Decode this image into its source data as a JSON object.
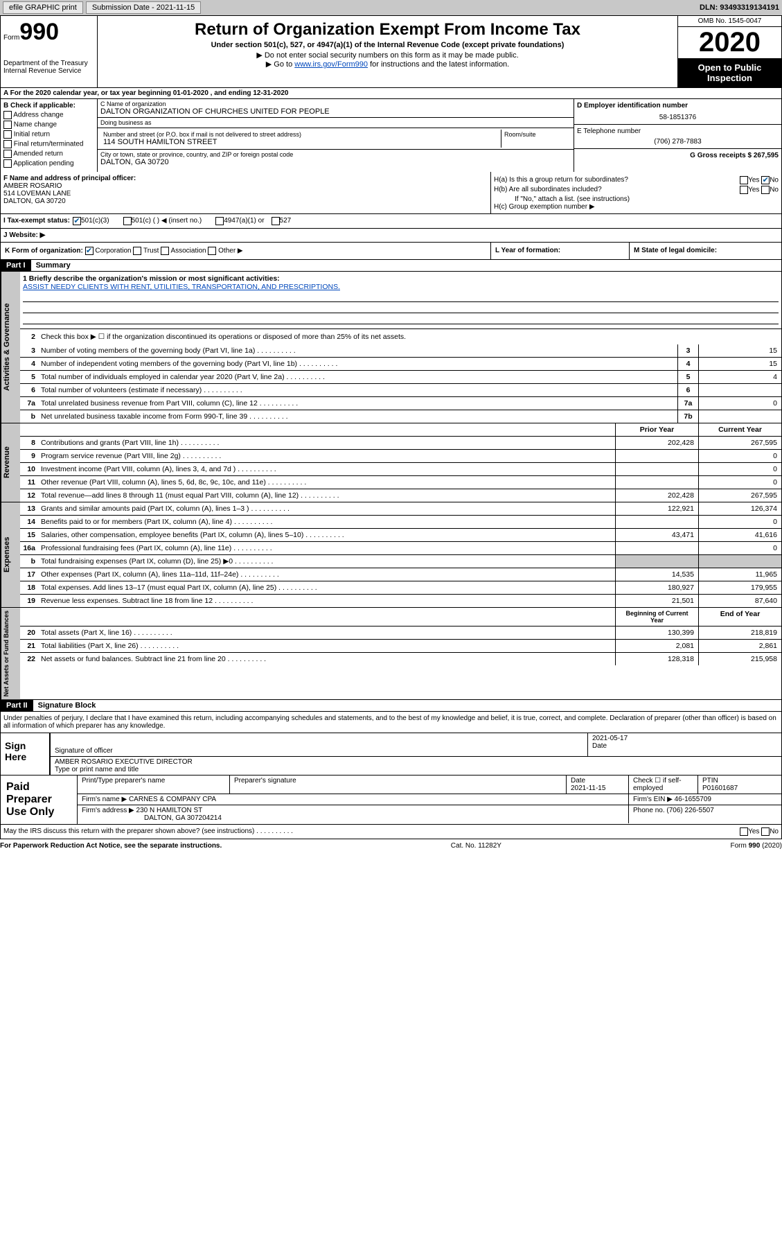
{
  "topbar": {
    "efile": "efile GRAPHIC print",
    "subdate_label": "Submission Date - 2021-11-15",
    "dln": "DLN: 93493319134191"
  },
  "header": {
    "form_word": "Form",
    "form_num": "990",
    "dept1": "Department of the Treasury",
    "dept2": "Internal Revenue Service",
    "title": "Return of Organization Exempt From Income Tax",
    "sub1": "Under section 501(c), 527, or 4947(a)(1) of the Internal Revenue Code (except private foundations)",
    "sub2": "▶ Do not enter social security numbers on this form as it may be made public.",
    "sub3_a": "▶ Go to ",
    "sub3_link": "www.irs.gov/Form990",
    "sub3_b": " for instructions and the latest information.",
    "omb": "OMB No. 1545-0047",
    "year": "2020",
    "open": "Open to Public Inspection"
  },
  "row_a": "A For the 2020 calendar year, or tax year beginning 01-01-2020    , and ending 12-31-2020",
  "col_b": {
    "hdr": "B Check if applicable:",
    "items": [
      "Address change",
      "Name change",
      "Initial return",
      "Final return/terminated",
      "Amended return",
      "Application pending"
    ]
  },
  "col_c": {
    "name_label": "C Name of organization",
    "name": "DALTON ORGANIZATION OF CHURCHES UNITED FOR PEOPLE",
    "dba_label": "Doing business as",
    "dba": "",
    "street_label": "Number and street (or P.O. box if mail is not delivered to street address)",
    "room_label": "Room/suite",
    "street": "114 SOUTH HAMILTON STREET",
    "city_label": "City or town, state or province, country, and ZIP or foreign postal code",
    "city": "DALTON, GA  30720"
  },
  "col_de": {
    "d_label": "D Employer identification number",
    "d_val": "58-1851376",
    "e_label": "E Telephone number",
    "e_val": "(706) 278-7883",
    "g_label": "G Gross receipts $ 267,595"
  },
  "row_f": {
    "label": "F  Name and address of principal officer:",
    "name": "AMBER ROSARIO",
    "addr1": "514 LOVEMAN LANE",
    "addr2": "DALTON, GA  30720"
  },
  "row_h": {
    "ha": "H(a)  Is this a group return for subordinates?",
    "hb": "H(b)  Are all subordinates included?",
    "hb_note": "If \"No,\" attach a list. (see instructions)",
    "hc": "H(c)  Group exemption number ▶",
    "yes": "Yes",
    "no": "No"
  },
  "row_i": {
    "label": "I  Tax-exempt status:",
    "o1": "501(c)(3)",
    "o2": "501(c) (   ) ◀ (insert no.)",
    "o3": "4947(a)(1) or",
    "o4": "527"
  },
  "row_j": {
    "label": "J  Website: ▶"
  },
  "row_k": {
    "label": "K Form of organization:",
    "o1": "Corporation",
    "o2": "Trust",
    "o3": "Association",
    "o4": "Other ▶"
  },
  "row_l": "L Year of formation:",
  "row_m": "M State of legal domicile:",
  "part1": {
    "hdr": "Part I",
    "title": "Summary"
  },
  "gov": {
    "tab": "Activities & Governance",
    "l1_label": "1  Briefly describe the organization's mission or most significant activities:",
    "l1_val": "ASSIST NEEDY CLIENTS WITH RENT, UTILITIES, TRANSPORTATION, AND PRESCRIPTIONS.",
    "l2": "Check this box ▶ ☐  if the organization discontinued its operations or disposed of more than 25% of its net assets.",
    "lines": [
      {
        "n": "3",
        "t": "Number of voting members of the governing body (Part VI, line 1a)",
        "b": "3",
        "v": "15"
      },
      {
        "n": "4",
        "t": "Number of independent voting members of the governing body (Part VI, line 1b)",
        "b": "4",
        "v": "15"
      },
      {
        "n": "5",
        "t": "Total number of individuals employed in calendar year 2020 (Part V, line 2a)",
        "b": "5",
        "v": "4"
      },
      {
        "n": "6",
        "t": "Total number of volunteers (estimate if necessary)",
        "b": "6",
        "v": ""
      },
      {
        "n": "7a",
        "t": "Total unrelated business revenue from Part VIII, column (C), line 12",
        "b": "7a",
        "v": "0"
      },
      {
        "n": "b",
        "t": "Net unrelated business taxable income from Form 990-T, line 39",
        "b": "7b",
        "v": ""
      }
    ]
  },
  "yr_hdr": {
    "prior": "Prior Year",
    "current": "Current Year"
  },
  "rev": {
    "tab": "Revenue",
    "lines": [
      {
        "n": "8",
        "t": "Contributions and grants (Part VIII, line 1h)",
        "p": "202,428",
        "c": "267,595"
      },
      {
        "n": "9",
        "t": "Program service revenue (Part VIII, line 2g)",
        "p": "",
        "c": "0"
      },
      {
        "n": "10",
        "t": "Investment income (Part VIII, column (A), lines 3, 4, and 7d )",
        "p": "",
        "c": "0"
      },
      {
        "n": "11",
        "t": "Other revenue (Part VIII, column (A), lines 5, 6d, 8c, 9c, 10c, and 11e)",
        "p": "",
        "c": "0"
      },
      {
        "n": "12",
        "t": "Total revenue—add lines 8 through 11 (must equal Part VIII, column (A), line 12)",
        "p": "202,428",
        "c": "267,595"
      }
    ]
  },
  "exp": {
    "tab": "Expenses",
    "lines": [
      {
        "n": "13",
        "t": "Grants and similar amounts paid (Part IX, column (A), lines 1–3 )",
        "p": "122,921",
        "c": "126,374"
      },
      {
        "n": "14",
        "t": "Benefits paid to or for members (Part IX, column (A), line 4)",
        "p": "",
        "c": "0"
      },
      {
        "n": "15",
        "t": "Salaries, other compensation, employee benefits (Part IX, column (A), lines 5–10)",
        "p": "43,471",
        "c": "41,616"
      },
      {
        "n": "16a",
        "t": "Professional fundraising fees (Part IX, column (A), line 11e)",
        "p": "",
        "c": "0"
      },
      {
        "n": "b",
        "t": "Total fundraising expenses (Part IX, column (D), line 25) ▶0",
        "p": "",
        "c": ""
      },
      {
        "n": "17",
        "t": "Other expenses (Part IX, column (A), lines 11a–11d, 11f–24e)",
        "p": "14,535",
        "c": "11,965"
      },
      {
        "n": "18",
        "t": "Total expenses. Add lines 13–17 (must equal Part IX, column (A), line 25)",
        "p": "180,927",
        "c": "179,955"
      },
      {
        "n": "19",
        "t": "Revenue less expenses. Subtract line 18 from line 12",
        "p": "21,501",
        "c": "87,640"
      }
    ]
  },
  "na": {
    "tab": "Net Assets or Fund Balances",
    "hdr": {
      "b": "Beginning of Current Year",
      "e": "End of Year"
    },
    "lines": [
      {
        "n": "20",
        "t": "Total assets (Part X, line 16)",
        "p": "130,399",
        "c": "218,819"
      },
      {
        "n": "21",
        "t": "Total liabilities (Part X, line 26)",
        "p": "2,081",
        "c": "2,861"
      },
      {
        "n": "22",
        "t": "Net assets or fund balances. Subtract line 21 from line 20",
        "p": "128,318",
        "c": "215,958"
      }
    ]
  },
  "part2": {
    "hdr": "Part II",
    "title": "Signature Block",
    "penalties": "Under penalties of perjury, I declare that I have examined this return, including accompanying schedules and statements, and to the best of my knowledge and belief, it is true, correct, and complete. Declaration of preparer (other than officer) is based on all information of which preparer has any knowledge."
  },
  "sign": {
    "label": "Sign Here",
    "sig_label": "Signature of officer",
    "date_label": "Date",
    "date": "2021-05-17",
    "name": "AMBER ROSARIO  EXECUTIVE DIRECTOR",
    "name_label": "Type or print name and title"
  },
  "paid": {
    "label": "Paid Preparer Use Only",
    "h1": "Print/Type preparer's name",
    "h2": "Preparer's signature",
    "h3": "Date",
    "h3v": "2021-11-15",
    "h4": "Check ☐ if self-employed",
    "h5": "PTIN",
    "h5v": "P01601687",
    "firm_name_l": "Firm's name    ▶",
    "firm_name": "CARNES & COMPANY CPA",
    "firm_ein_l": "Firm's EIN ▶",
    "firm_ein": "46-1655709",
    "firm_addr_l": "Firm's address ▶",
    "firm_addr1": "230 N HAMILTON ST",
    "firm_addr2": "DALTON, GA  307204214",
    "phone_l": "Phone no.",
    "phone": "(706) 226-5507"
  },
  "discuss": {
    "q": "May the IRS discuss this return with the preparer shown above? (see instructions)",
    "yes": "Yes",
    "no": "No"
  },
  "footer": {
    "l": "For Paperwork Reduction Act Notice, see the separate instructions.",
    "c": "Cat. No. 11282Y",
    "r": "Form 990 (2020)"
  }
}
